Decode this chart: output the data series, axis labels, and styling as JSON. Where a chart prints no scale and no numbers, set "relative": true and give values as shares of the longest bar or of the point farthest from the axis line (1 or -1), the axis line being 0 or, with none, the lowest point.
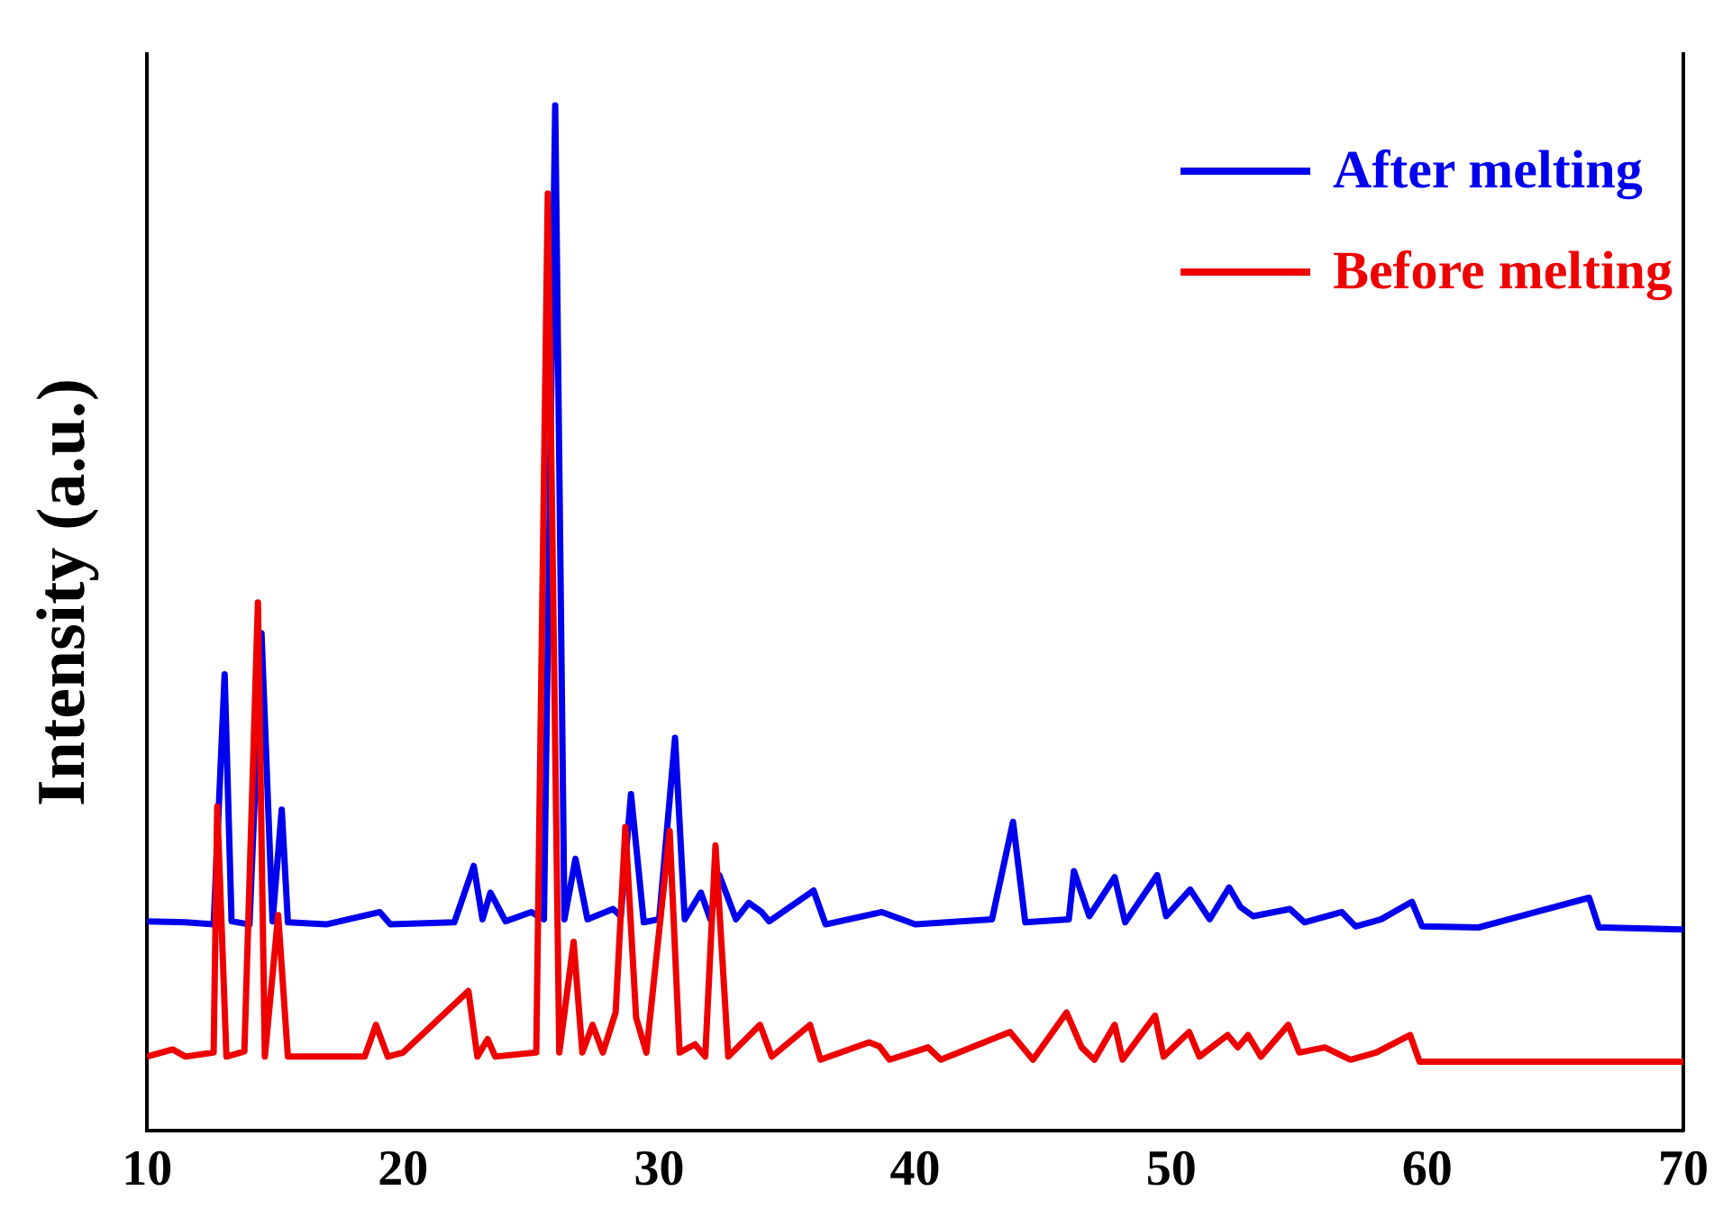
{
  "chart_data": {
    "type": "line",
    "ylabel": "Intensity (a.u.)",
    "relative": true,
    "xlim": [
      10,
      70
    ],
    "xticks": [
      10,
      20,
      30,
      40,
      50,
      60,
      70
    ],
    "grid": false,
    "legend": "top right",
    "marker": "none",
    "line_style": "solid",
    "series": [
      {
        "name": "After melting",
        "color": "#0000ee",
        "x": [
          10,
          11.5,
          12.6,
          13.03,
          13.3,
          14,
          14.47,
          14.9,
          15.26,
          15.5,
          17,
          19.09,
          19.5,
          22,
          22.76,
          23.1,
          23.41,
          24,
          25,
          25.5,
          25.94,
          26.3,
          26.73,
          27.2,
          28.2,
          28.5,
          28.9,
          29.4,
          30,
          30.62,
          31,
          31.63,
          32,
          32.35,
          33,
          33.5,
          34,
          34.3,
          36.03,
          36.5,
          38.7,
          40,
          43,
          43.82,
          44.3,
          46,
          46.2,
          46.8,
          47.79,
          48.2,
          49.45,
          49.8,
          50.74,
          51.5,
          52.26,
          52.7,
          53.2,
          54.64,
          55.2,
          56.66,
          57.2,
          58.2,
          59.4,
          59.8,
          62,
          66.32,
          66.7,
          70
        ],
        "values": [
          0.204,
          0.203,
          0.201,
          0.445,
          0.204,
          0.201,
          0.485,
          0.204,
          0.313,
          0.203,
          0.201,
          0.213,
          0.201,
          0.203,
          0.258,
          0.206,
          0.232,
          0.204,
          0.213,
          0.206,
          1.0,
          0.206,
          0.265,
          0.206,
          0.216,
          0.209,
          0.328,
          0.203,
          0.206,
          0.383,
          0.206,
          0.232,
          0.206,
          0.249,
          0.206,
          0.222,
          0.213,
          0.204,
          0.234,
          0.201,
          0.213,
          0.201,
          0.206,
          0.301,
          0.203,
          0.206,
          0.253,
          0.209,
          0.247,
          0.203,
          0.249,
          0.209,
          0.235,
          0.206,
          0.237,
          0.218,
          0.209,
          0.216,
          0.203,
          0.213,
          0.199,
          0.206,
          0.223,
          0.199,
          0.198,
          0.227,
          0.198,
          0.196
        ]
      },
      {
        "name": "Before melting",
        "color": "#ee0000",
        "x": [
          10,
          11,
          11.5,
          12.6,
          12.74,
          13.1,
          13.8,
          14.33,
          14.6,
          15.12,
          15.5,
          18.5,
          18.94,
          19.4,
          20,
          22.55,
          22.9,
          23.3,
          23.6,
          25.2,
          25.65,
          26.1,
          26.66,
          27,
          27.4,
          27.8,
          28.3,
          28.68,
          29.1,
          29.5,
          30.41,
          30.8,
          31.4,
          31.8,
          32.2,
          32.7,
          33.94,
          34.4,
          35.89,
          36.3,
          38.2,
          38.6,
          39,
          40.5,
          41,
          43,
          43.7,
          44.2,
          44.6,
          45.91,
          46.5,
          47,
          47.79,
          48.1,
          49.37,
          49.7,
          50.7,
          51.1,
          52.2,
          52.6,
          53,
          53.5,
          54.57,
          55,
          56,
          57,
          58,
          59.33,
          59.7,
          62,
          70
        ],
        "values": [
          0.072,
          0.079,
          0.072,
          0.076,
          0.316,
          0.072,
          0.077,
          0.515,
          0.072,
          0.21,
          0.072,
          0.072,
          0.103,
          0.072,
          0.076,
          0.136,
          0.072,
          0.089,
          0.072,
          0.076,
          0.914,
          0.076,
          0.184,
          0.076,
          0.103,
          0.076,
          0.115,
          0.296,
          0.11,
          0.076,
          0.292,
          0.076,
          0.084,
          0.072,
          0.278,
          0.072,
          0.103,
          0.072,
          0.103,
          0.069,
          0.086,
          0.082,
          0.069,
          0.081,
          0.069,
          0.089,
          0.096,
          0.081,
          0.069,
          0.115,
          0.081,
          0.069,
          0.103,
          0.069,
          0.112,
          0.072,
          0.096,
          0.072,
          0.093,
          0.081,
          0.093,
          0.072,
          0.103,
          0.076,
          0.081,
          0.069,
          0.076,
          0.093,
          0.067,
          0.067,
          0.067
        ]
      }
    ]
  }
}
